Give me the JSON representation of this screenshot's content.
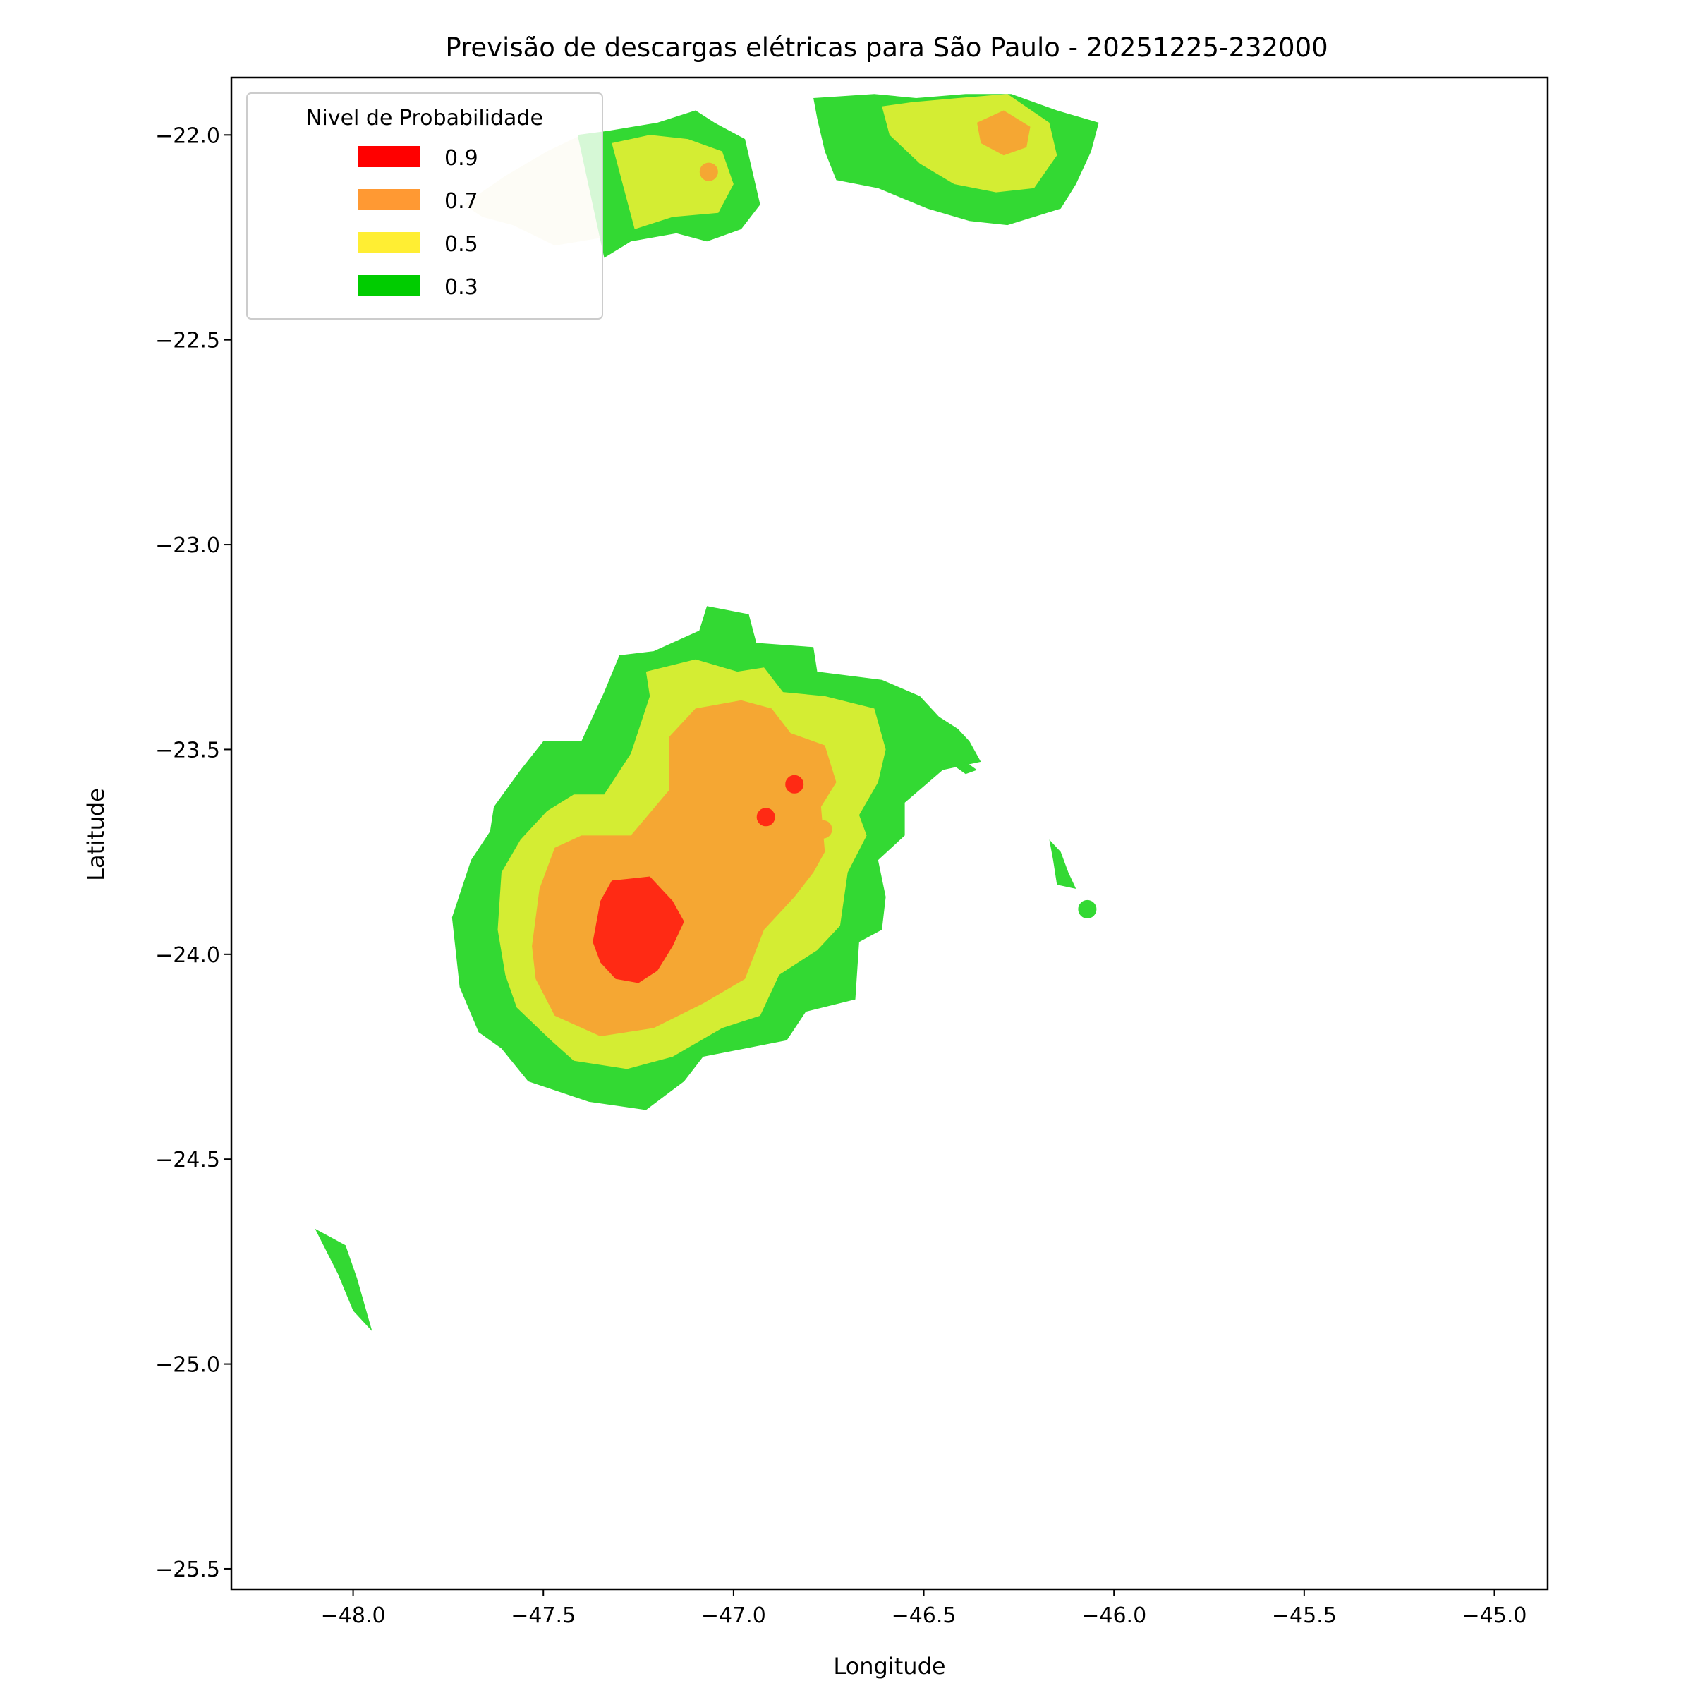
{
  "chart_data": {
    "type": "contour",
    "title": "Previsão de descargas elétricas para São Paulo - 20251225-232000",
    "xlabel": "Longitude",
    "ylabel": "Latitude",
    "xlim": [
      -48.32,
      -44.86
    ],
    "ylim": [
      -25.55,
      -21.86
    ],
    "x_ticks": [
      -48.0,
      -47.5,
      -47.0,
      -46.5,
      -46.0,
      -45.5,
      -45.0
    ],
    "x_tick_labels": [
      "−48.0",
      "−47.5",
      "−47.0",
      "−46.5",
      "−46.0",
      "−45.5",
      "−45.0"
    ],
    "y_ticks": [
      -22.0,
      -22.5,
      -23.0,
      -23.5,
      -24.0,
      -24.5,
      -25.0,
      -25.5
    ],
    "y_tick_labels": [
      "−22.0",
      "−22.5",
      "−23.0",
      "−23.5",
      "−24.0",
      "−24.5",
      "−25.0",
      "−25.5"
    ],
    "grid": false,
    "legend": {
      "title": "Nivel de Probabilidade",
      "placement": "top-left",
      "entries": [
        {
          "label": "0.9",
          "color": "#ff0000"
        },
        {
          "label": "0.7",
          "color": "#ff9933"
        },
        {
          "label": "0.5",
          "color": "#ffee33"
        },
        {
          "label": "0.3",
          "color": "#00cc00"
        }
      ]
    },
    "fill_colors": {
      "0.3": "#33d933",
      "0.5": "#d4ed33",
      "0.7": "#f5a733",
      "0.9": "#ff2a14"
    },
    "regions": [
      {
        "level": "0.3",
        "name": "main-storm-0.3",
        "points": [
          [
            -47.74,
            -23.91
          ],
          [
            -47.69,
            -23.77
          ],
          [
            -47.64,
            -23.7
          ],
          [
            -47.63,
            -23.64
          ],
          [
            -47.56,
            -23.55
          ],
          [
            -47.5,
            -23.48
          ],
          [
            -47.4,
            -23.48
          ],
          [
            -47.34,
            -23.36
          ],
          [
            -47.3,
            -23.27
          ],
          [
            -47.21,
            -23.26
          ],
          [
            -47.09,
            -23.21
          ],
          [
            -47.07,
            -23.15
          ],
          [
            -46.96,
            -23.17
          ],
          [
            -46.94,
            -23.24
          ],
          [
            -46.79,
            -23.25
          ],
          [
            -46.78,
            -23.31
          ],
          [
            -46.61,
            -23.33
          ],
          [
            -46.51,
            -23.37
          ],
          [
            -46.46,
            -23.42
          ],
          [
            -46.41,
            -23.45
          ],
          [
            -46.38,
            -23.48
          ],
          [
            -46.35,
            -23.53
          ],
          [
            -46.45,
            -23.55
          ],
          [
            -46.55,
            -23.63
          ],
          [
            -46.55,
            -23.71
          ],
          [
            -46.62,
            -23.77
          ],
          [
            -46.6,
            -23.86
          ],
          [
            -46.61,
            -23.94
          ],
          [
            -46.67,
            -23.97
          ],
          [
            -46.68,
            -24.11
          ],
          [
            -46.81,
            -24.14
          ],
          [
            -46.86,
            -24.21
          ],
          [
            -47.08,
            -24.25
          ],
          [
            -47.13,
            -24.31
          ],
          [
            -47.23,
            -24.38
          ],
          [
            -47.38,
            -24.36
          ],
          [
            -47.54,
            -24.31
          ],
          [
            -47.61,
            -24.23
          ],
          [
            -47.67,
            -24.19
          ],
          [
            -47.72,
            -24.08
          ]
        ]
      },
      {
        "level": "0.5",
        "name": "main-storm-0.5",
        "points": [
          [
            -47.62,
            -23.94
          ],
          [
            -47.61,
            -23.8
          ],
          [
            -47.56,
            -23.72
          ],
          [
            -47.49,
            -23.65
          ],
          [
            -47.42,
            -23.61
          ],
          [
            -47.34,
            -23.61
          ],
          [
            -47.27,
            -23.51
          ],
          [
            -47.22,
            -23.37
          ],
          [
            -47.23,
            -23.31
          ],
          [
            -47.1,
            -23.28
          ],
          [
            -46.99,
            -23.31
          ],
          [
            -46.92,
            -23.3
          ],
          [
            -46.87,
            -23.36
          ],
          [
            -46.76,
            -23.37
          ],
          [
            -46.63,
            -23.4
          ],
          [
            -46.6,
            -23.5
          ],
          [
            -46.62,
            -23.58
          ],
          [
            -46.67,
            -23.66
          ],
          [
            -46.65,
            -23.71
          ],
          [
            -46.7,
            -23.8
          ],
          [
            -46.72,
            -23.93
          ],
          [
            -46.78,
            -23.99
          ],
          [
            -46.88,
            -24.05
          ],
          [
            -46.93,
            -24.15
          ],
          [
            -47.03,
            -24.18
          ],
          [
            -47.16,
            -24.25
          ],
          [
            -47.28,
            -24.28
          ],
          [
            -47.42,
            -24.26
          ],
          [
            -47.48,
            -24.21
          ],
          [
            -47.57,
            -24.13
          ],
          [
            -47.6,
            -24.05
          ]
        ]
      },
      {
        "level": "0.7",
        "name": "main-storm-0.7",
        "points": [
          [
            -47.53,
            -23.98
          ],
          [
            -47.51,
            -23.84
          ],
          [
            -47.47,
            -23.74
          ],
          [
            -47.4,
            -23.71
          ],
          [
            -47.27,
            -23.71
          ],
          [
            -47.17,
            -23.6
          ],
          [
            -47.17,
            -23.47
          ],
          [
            -47.1,
            -23.4
          ],
          [
            -46.98,
            -23.38
          ],
          [
            -46.9,
            -23.4
          ],
          [
            -46.85,
            -23.46
          ],
          [
            -46.76,
            -23.49
          ],
          [
            -46.73,
            -23.58
          ],
          [
            -46.77,
            -23.64
          ],
          [
            -46.76,
            -23.75
          ],
          [
            -46.79,
            -23.8
          ],
          [
            -46.84,
            -23.86
          ],
          [
            -46.92,
            -23.94
          ],
          [
            -46.97,
            -24.06
          ],
          [
            -47.08,
            -24.12
          ],
          [
            -47.21,
            -24.18
          ],
          [
            -47.35,
            -24.2
          ],
          [
            -47.47,
            -24.15
          ],
          [
            -47.52,
            -24.06
          ]
        ]
      },
      {
        "level": "0.9",
        "name": "main-storm-0.9",
        "points": [
          [
            -47.37,
            -23.97
          ],
          [
            -47.35,
            -23.87
          ],
          [
            -47.32,
            -23.82
          ],
          [
            -47.22,
            -23.81
          ],
          [
            -47.16,
            -23.87
          ],
          [
            -47.13,
            -23.92
          ],
          [
            -47.16,
            -23.98
          ],
          [
            -47.2,
            -24.04
          ],
          [
            -47.25,
            -24.07
          ],
          [
            -47.31,
            -24.06
          ],
          [
            -47.35,
            -24.02
          ]
        ]
      },
      {
        "level": "0.3",
        "name": "north-storm-a-0.3",
        "points": [
          [
            -47.41,
            -22.0
          ],
          [
            -47.33,
            -21.99
          ],
          [
            -47.2,
            -21.97
          ],
          [
            -47.1,
            -21.94
          ],
          [
            -47.05,
            -21.97
          ],
          [
            -46.97,
            -22.01
          ],
          [
            -46.95,
            -22.09
          ],
          [
            -46.93,
            -22.17
          ],
          [
            -46.98,
            -22.23
          ],
          [
            -47.07,
            -22.26
          ],
          [
            -47.15,
            -22.24
          ],
          [
            -47.27,
            -22.26
          ],
          [
            -47.34,
            -22.3
          ]
        ]
      },
      {
        "level": "0.5",
        "name": "north-storm-a-0.5",
        "points": [
          [
            -47.32,
            -22.02
          ],
          [
            -47.22,
            -22.0
          ],
          [
            -47.12,
            -22.01
          ],
          [
            -47.03,
            -22.04
          ],
          [
            -47.0,
            -22.12
          ],
          [
            -47.04,
            -22.19
          ],
          [
            -47.16,
            -22.2
          ],
          [
            -47.26,
            -22.23
          ]
        ]
      },
      {
        "level": "0.3",
        "name": "north-storm-b-0.3",
        "points": [
          [
            -46.79,
            -21.91
          ],
          [
            -46.63,
            -21.9
          ],
          [
            -46.52,
            -21.91
          ],
          [
            -46.39,
            -21.9
          ],
          [
            -46.27,
            -21.9
          ],
          [
            -46.15,
            -21.94
          ],
          [
            -46.04,
            -21.97
          ],
          [
            -46.06,
            -22.04
          ],
          [
            -46.1,
            -22.12
          ],
          [
            -46.14,
            -22.18
          ],
          [
            -46.28,
            -22.22
          ],
          [
            -46.38,
            -22.21
          ],
          [
            -46.49,
            -22.18
          ],
          [
            -46.62,
            -22.13
          ],
          [
            -46.73,
            -22.11
          ],
          [
            -46.76,
            -22.04
          ],
          [
            -46.78,
            -21.96
          ]
        ]
      },
      {
        "level": "0.5",
        "name": "north-storm-b-0.5",
        "points": [
          [
            -46.61,
            -21.93
          ],
          [
            -46.53,
            -21.92
          ],
          [
            -46.41,
            -21.91
          ],
          [
            -46.28,
            -21.9
          ],
          [
            -46.17,
            -21.97
          ],
          [
            -46.15,
            -22.05
          ],
          [
            -46.21,
            -22.13
          ],
          [
            -46.31,
            -22.14
          ],
          [
            -46.42,
            -22.12
          ],
          [
            -46.51,
            -22.07
          ],
          [
            -46.59,
            -22.0
          ]
        ]
      },
      {
        "level": "0.7",
        "name": "north-storm-b-0.7",
        "points": [
          [
            -46.36,
            -21.97
          ],
          [
            -46.29,
            -21.94
          ],
          [
            -46.22,
            -21.98
          ],
          [
            -46.23,
            -22.03
          ],
          [
            -46.29,
            -22.05
          ],
          [
            -46.35,
            -22.02
          ]
        ]
      },
      {
        "level": "0.3",
        "name": "small-cell-east-0.3",
        "points": [
          [
            -46.17,
            -23.72
          ],
          [
            -46.14,
            -23.75
          ],
          [
            -46.12,
            -23.8
          ],
          [
            -46.1,
            -23.84
          ],
          [
            -46.15,
            -23.83
          ],
          [
            -46.16,
            -23.77
          ]
        ]
      },
      {
        "level": "0.3",
        "name": "small-cell-east-b-0.3",
        "points": [
          [
            -46.42,
            -23.54
          ],
          [
            -46.39,
            -23.56
          ],
          [
            -46.36,
            -23.55
          ],
          [
            -46.39,
            -23.53
          ]
        ]
      },
      {
        "level": "0.3",
        "name": "small-cell-southwest-0.3",
        "points": [
          [
            -48.1,
            -24.67
          ],
          [
            -48.04,
            -24.78
          ],
          [
            -48.0,
            -24.87
          ],
          [
            -47.95,
            -24.92
          ],
          [
            -47.99,
            -24.79
          ],
          [
            -48.02,
            -24.71
          ],
          [
            -48.06,
            -24.69
          ]
        ]
      }
    ],
    "faded_region": {
      "name": "north-storm-faded-wash",
      "points": [
        [
          -47.71,
          -22.17
        ],
        [
          -47.6,
          -22.1
        ],
        [
          -47.49,
          -22.04
        ],
        [
          -47.4,
          -22.0
        ],
        [
          -47.33,
          -21.99
        ],
        [
          -47.3,
          -22.1
        ],
        [
          -47.34,
          -22.25
        ],
        [
          -47.47,
          -22.27
        ],
        [
          -47.58,
          -22.22
        ],
        [
          -47.66,
          -22.2
        ]
      ]
    },
    "markers": [
      {
        "name": "red-marker-1",
        "x": -46.84,
        "y": -23.585,
        "color": "#ff2a14"
      },
      {
        "name": "red-marker-2",
        "x": -46.915,
        "y": -23.665,
        "color": "#ff2a14"
      },
      {
        "name": "orange-marker-1",
        "x": -46.765,
        "y": -23.695,
        "color": "#f5a733"
      },
      {
        "name": "orange-marker-2",
        "x": -47.065,
        "y": -22.09,
        "color": "#f5a733"
      },
      {
        "name": "green-marker-1",
        "x": -46.07,
        "y": -23.89,
        "color": "#33d933"
      }
    ]
  }
}
